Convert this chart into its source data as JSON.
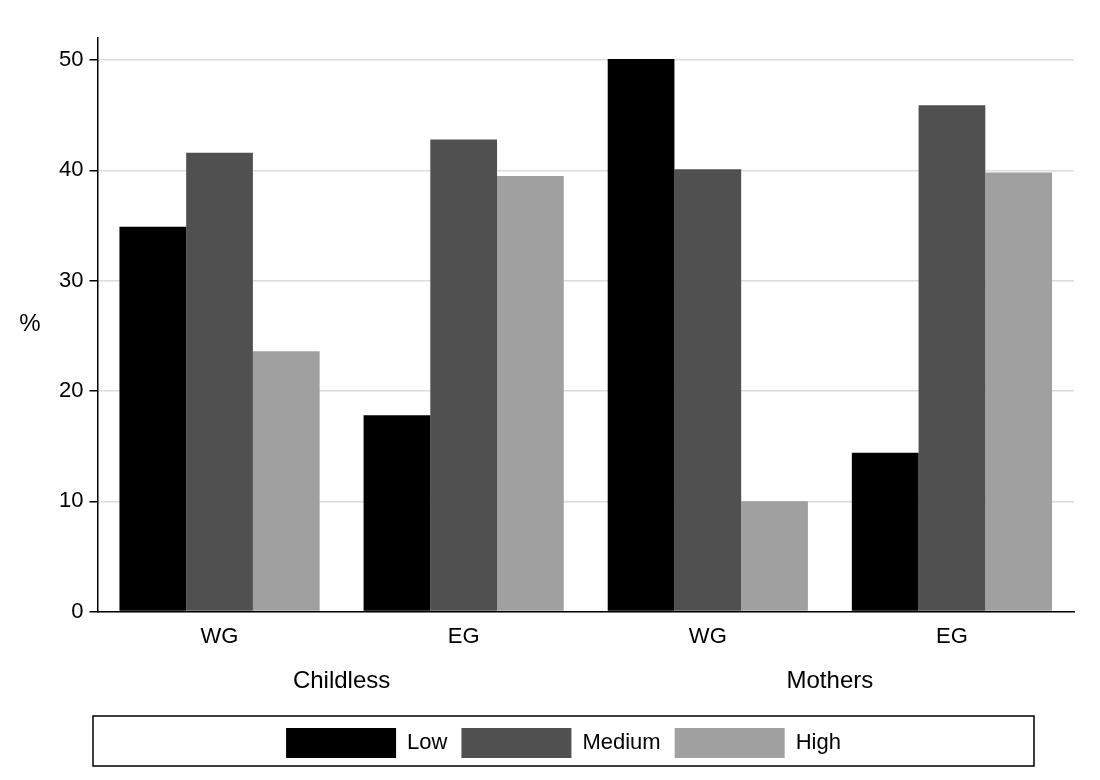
{
  "chart_data": {
    "type": "bar",
    "ylabel": "%",
    "categories": [
      "WG",
      "EG",
      "WG",
      "EG"
    ],
    "series": [
      {
        "name": "Low",
        "color": "#000000",
        "values": [
          34.9,
          17.8,
          50.1,
          14.4
        ]
      },
      {
        "name": "Medium",
        "color": "#505050",
        "values": [
          41.6,
          42.8,
          40.1,
          45.9
        ]
      },
      {
        "name": "High",
        "color": "#a0a0a0",
        "values": [
          23.6,
          39.5,
          10.0,
          39.8
        ]
      }
    ],
    "annotations": [
      "Childless",
      "Mothers"
    ],
    "ylim": [
      0,
      52
    ],
    "yticks": [
      0,
      10,
      20,
      30,
      40,
      50
    ],
    "grid": "y",
    "legend": "bottom"
  }
}
